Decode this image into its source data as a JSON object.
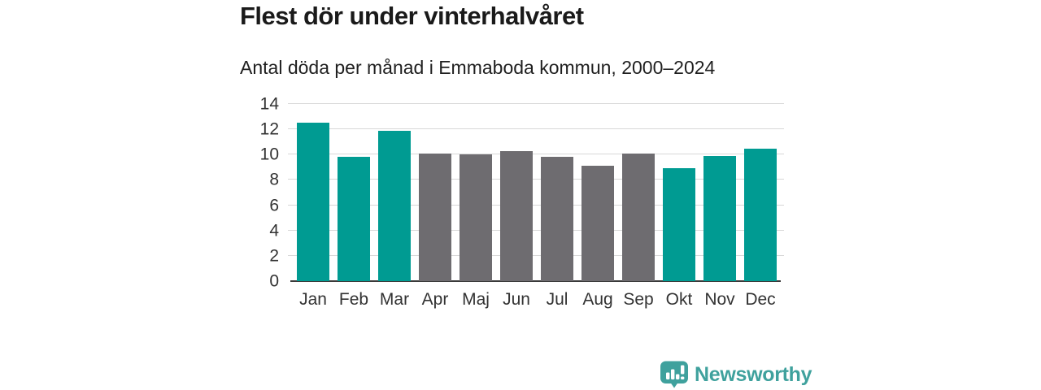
{
  "header": {
    "title": "Flest dör under vinterhalvåret",
    "subtitle": "Antal döda per månad i Emmaboda kommun, 2000–2024"
  },
  "chart_data": {
    "type": "bar",
    "title": "Flest dör under vinterhalvåret",
    "subtitle": "Antal döda per månad i Emmaboda kommun, 2000–2024",
    "categories": [
      "Jan",
      "Feb",
      "Mar",
      "Apr",
      "Maj",
      "Jun",
      "Jul",
      "Aug",
      "Sep",
      "Okt",
      "Nov",
      "Dec"
    ],
    "values": [
      12.5,
      9.8,
      11.9,
      10.1,
      10.0,
      10.3,
      9.8,
      9.1,
      10.1,
      8.9,
      9.9,
      10.5
    ],
    "bar_colors": [
      "teal",
      "teal",
      "teal",
      "gray",
      "gray",
      "gray",
      "gray",
      "gray",
      "gray",
      "teal",
      "teal",
      "teal"
    ],
    "palette": {
      "teal": "#009b92",
      "gray": "#6e6c70"
    },
    "xlabel": "",
    "ylabel": "",
    "ylim": [
      0,
      14
    ],
    "yticks": [
      0,
      2,
      4,
      6,
      8,
      10,
      12,
      14
    ],
    "grid": "horizontal",
    "legend": "none",
    "highlight_meaning": "teal = winter half-year months, gray = summer half-year months"
  },
  "footer": {
    "brand": "Newsworthy",
    "brand_color": "#3fa19d",
    "logo_icon": "newsworthy-chart-bubble-icon"
  },
  "colors": {
    "background": "#ffffff",
    "title_text": "#1a1a1a",
    "axis_text": "#333333",
    "gridline": "#d8d8d8",
    "baseline": "#3a3a3a"
  }
}
